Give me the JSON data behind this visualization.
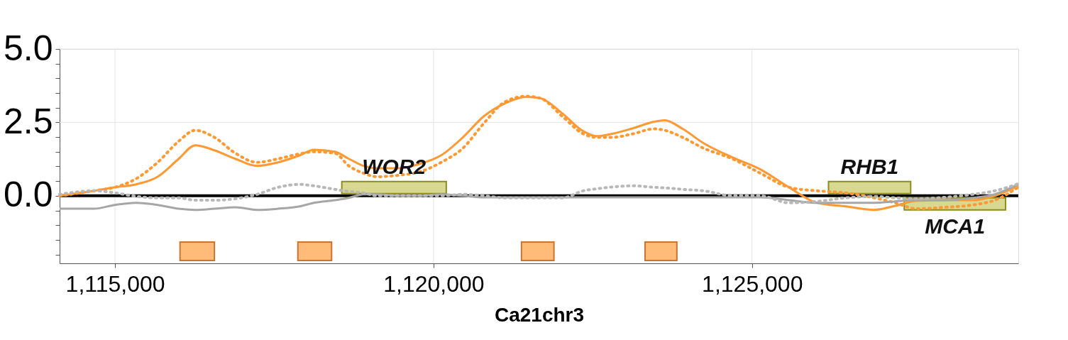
{
  "chart_data": {
    "type": "line",
    "xlabel": "Ca21chr3",
    "x": [
      1114130,
      1114670,
      1115000,
      1115330,
      1115670,
      1116000,
      1116260,
      1116560,
      1116890,
      1117230,
      1117560,
      1117900,
      1118120,
      1118450,
      1118670,
      1118900,
      1119120,
      1119450,
      1119790,
      1120120,
      1120460,
      1120790,
      1121120,
      1121460,
      1121680,
      1122020,
      1122350,
      1122570,
      1122800,
      1123130,
      1123460,
      1123630,
      1123910,
      1124240,
      1124690,
      1125130,
      1125580,
      1126020,
      1126470,
      1126920,
      1127250,
      1127580,
      1128030,
      1128470,
      1128810,
      1129180
    ],
    "series": [
      {
        "color": "#ff9933",
        "line_style": "solid",
        "values": [
          0,
          0.17,
          0.29,
          0.39,
          0.65,
          1.26,
          1.72,
          1.55,
          1.26,
          1.02,
          1.14,
          1.38,
          1.57,
          1.5,
          1.26,
          1.02,
          0.94,
          0.94,
          1.09,
          1.38,
          1.99,
          2.71,
          3.15,
          3.37,
          3.32,
          2.81,
          2.2,
          2.03,
          2.11,
          2.3,
          2.52,
          2.57,
          2.28,
          1.79,
          1.31,
          0.9,
          0.29,
          -0.24,
          -0.36,
          -0.48,
          -0.34,
          -0.17,
          -0.15,
          -0.15,
          0,
          0.34
        ]
      },
      {
        "color": "#ff9933",
        "line_style": "dotted",
        "values": [
          0,
          0.17,
          0.29,
          0.58,
          1.14,
          1.86,
          2.23,
          1.99,
          1.45,
          1.14,
          1.26,
          1.43,
          1.5,
          1.45,
          1.02,
          0.77,
          0.65,
          0.7,
          0.82,
          1.14,
          1.62,
          2.47,
          3.2,
          3.39,
          3.32,
          2.71,
          2.11,
          1.99,
          1.99,
          2.11,
          2.28,
          2.23,
          1.99,
          1.62,
          1.26,
          0.77,
          0.29,
          0.17,
          0.1,
          -0.07,
          -0.24,
          -0.44,
          -0.39,
          -0.31,
          -0.15,
          0.29
        ]
      },
      {
        "color": "#a6a6a6",
        "line_style": "solid",
        "values": [
          -0.44,
          -0.44,
          -0.31,
          -0.24,
          -0.31,
          -0.44,
          -0.48,
          -0.44,
          -0.39,
          -0.48,
          -0.44,
          -0.36,
          -0.24,
          -0.15,
          -0.07,
          0.05,
          0.05,
          0,
          0,
          0.05,
          0,
          -0.05,
          -0.05,
          -0.05,
          -0.05,
          -0.05,
          -0.05,
          -0.05,
          -0.05,
          -0.05,
          -0.05,
          -0.05,
          -0.05,
          -0.05,
          -0.05,
          -0.05,
          -0.15,
          -0.24,
          -0.24,
          -0.24,
          -0.19,
          -0.15,
          -0.15,
          -0.07,
          0.05,
          0.39
        ]
      },
      {
        "color": "#b8b8b8",
        "line_style": "dotted",
        "values": [
          0.05,
          0.17,
          0.1,
          -0.02,
          -0.07,
          -0.07,
          -0.15,
          -0.15,
          -0.1,
          0.05,
          0.29,
          0.39,
          0.34,
          0.22,
          0.15,
          0.1,
          0,
          0,
          0,
          0,
          0.05,
          0,
          -0.07,
          -0.07,
          -0.07,
          -0.07,
          0.17,
          0.24,
          0.3,
          0.34,
          0.29,
          0.27,
          0.22,
          0.17,
          0,
          0,
          -0.24,
          -0.19,
          -0.07,
          -0.02,
          -0.07,
          -0.1,
          -0.05,
          0.05,
          0.17,
          0.41
        ]
      }
    ],
    "xlim": [
      1114130,
      1129180
    ],
    "xticks": [
      {
        "value": 1115000,
        "label": "1,115,000"
      },
      {
        "value": 1120000,
        "label": "1,120,000"
      },
      {
        "value": 1125000,
        "label": "1,125,000"
      }
    ],
    "ylim": [
      -2.3,
      5.0
    ],
    "yticks": [
      {
        "value": -2.0,
        "label": null
      },
      {
        "value": -1.5,
        "label": null
      },
      {
        "value": -1.0,
        "label": null
      },
      {
        "value": -0.5,
        "label": null
      },
      {
        "value": 0,
        "label": "0.0"
      },
      {
        "value": 0.5,
        "label": null
      },
      {
        "value": 1.0,
        "label": null
      },
      {
        "value": 1.5,
        "label": null
      },
      {
        "value": 2.0,
        "label": null
      },
      {
        "value": 2.5,
        "label": "2.5"
      },
      {
        "value": 3.0,
        "label": null
      },
      {
        "value": 3.5,
        "label": null
      },
      {
        "value": 4.0,
        "label": null
      },
      {
        "value": 4.5,
        "label": null
      },
      {
        "value": 5.0,
        "label": "5.0"
      }
    ],
    "grid": true,
    "ref_lines": [
      {
        "axis": "y",
        "value": 0,
        "color": "#000000"
      }
    ],
    "bands": [
      {
        "axis": "x",
        "from": 1118560,
        "to": 1120200,
        "label": "WOR2",
        "color": "#d8d890"
      },
      {
        "axis": "x",
        "from": 1126200,
        "to": 1127490,
        "label": "RHB1",
        "color": "#d8d890"
      },
      {
        "axis": "x",
        "from": 1127390,
        "to": 1128980,
        "label": "MCA1",
        "color": "#d8d890"
      },
      {
        "axis": "x",
        "from": 1116020,
        "to": 1116560,
        "color": "#ffbb77"
      },
      {
        "axis": "x",
        "from": 1117870,
        "to": 1118400,
        "color": "#ffbb77"
      },
      {
        "axis": "x",
        "from": 1121380,
        "to": 1121890,
        "color": "#ffbb77"
      },
      {
        "axis": "x",
        "from": 1123320,
        "to": 1123820,
        "color": "#ffbb77"
      }
    ]
  }
}
